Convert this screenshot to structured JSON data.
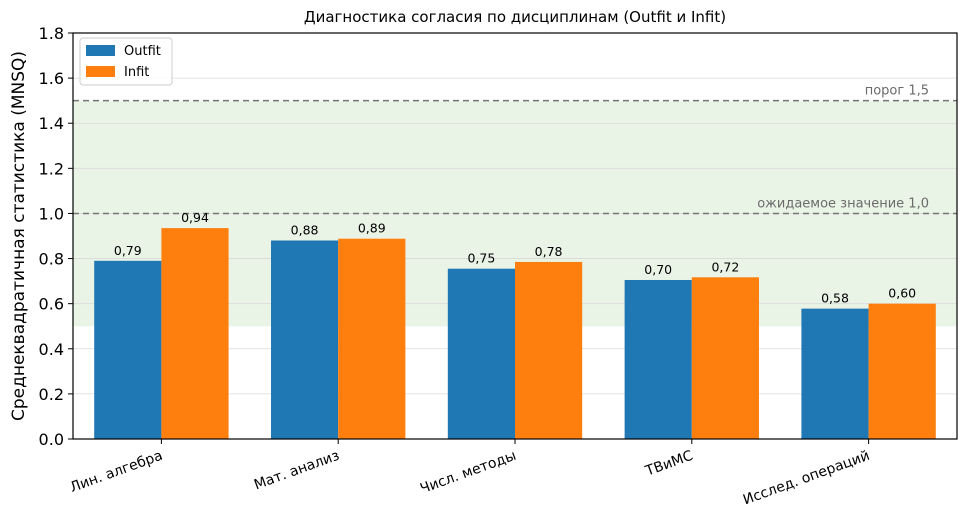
{
  "chart_data": {
    "type": "bar",
    "title": "Диагностика согласия по дисциплинам (Outfit и Infit)",
    "xlabel": "",
    "ylabel": "Среднеквадратичная статистика (MNSQ)",
    "ylim": [
      0,
      1.8
    ],
    "yticks": [
      0.0,
      0.2,
      0.4,
      0.6,
      0.8,
      1.0,
      1.2,
      1.4,
      1.6,
      1.8
    ],
    "ytick_labels": [
      "0.0",
      "0.2",
      "0.4",
      "0.6",
      "0.8",
      "1.0",
      "1.2",
      "1.4",
      "1.6",
      "1.8"
    ],
    "categories": [
      "Лин. алгебра",
      "Мат. анализ",
      "Числ. методы",
      "ТВиМС",
      "Исслед. операций"
    ],
    "series": [
      {
        "name": "Outfit",
        "color": "#1f77b4",
        "values": [
          0.79,
          0.88,
          0.755,
          0.705,
          0.578
        ],
        "labels": [
          "0,79",
          "0,88",
          "0,75",
          "0,70",
          "0,58"
        ]
      },
      {
        "name": "Infit",
        "color": "#ff7f0e",
        "values": [
          0.935,
          0.888,
          0.785,
          0.717,
          0.6
        ],
        "labels": [
          "0,94",
          "0,89",
          "0,78",
          "0,72",
          "0,60"
        ]
      }
    ],
    "shaded_band": {
      "from": 0.5,
      "to": 1.5,
      "color": "#e9f4e6"
    },
    "reference_lines": [
      {
        "y": 1.5,
        "label": "порог 1,5"
      },
      {
        "y": 1.0,
        "label": "ожидаемое значение 1,0"
      }
    ],
    "grid": "horizontal",
    "legend_position": "top-left"
  }
}
